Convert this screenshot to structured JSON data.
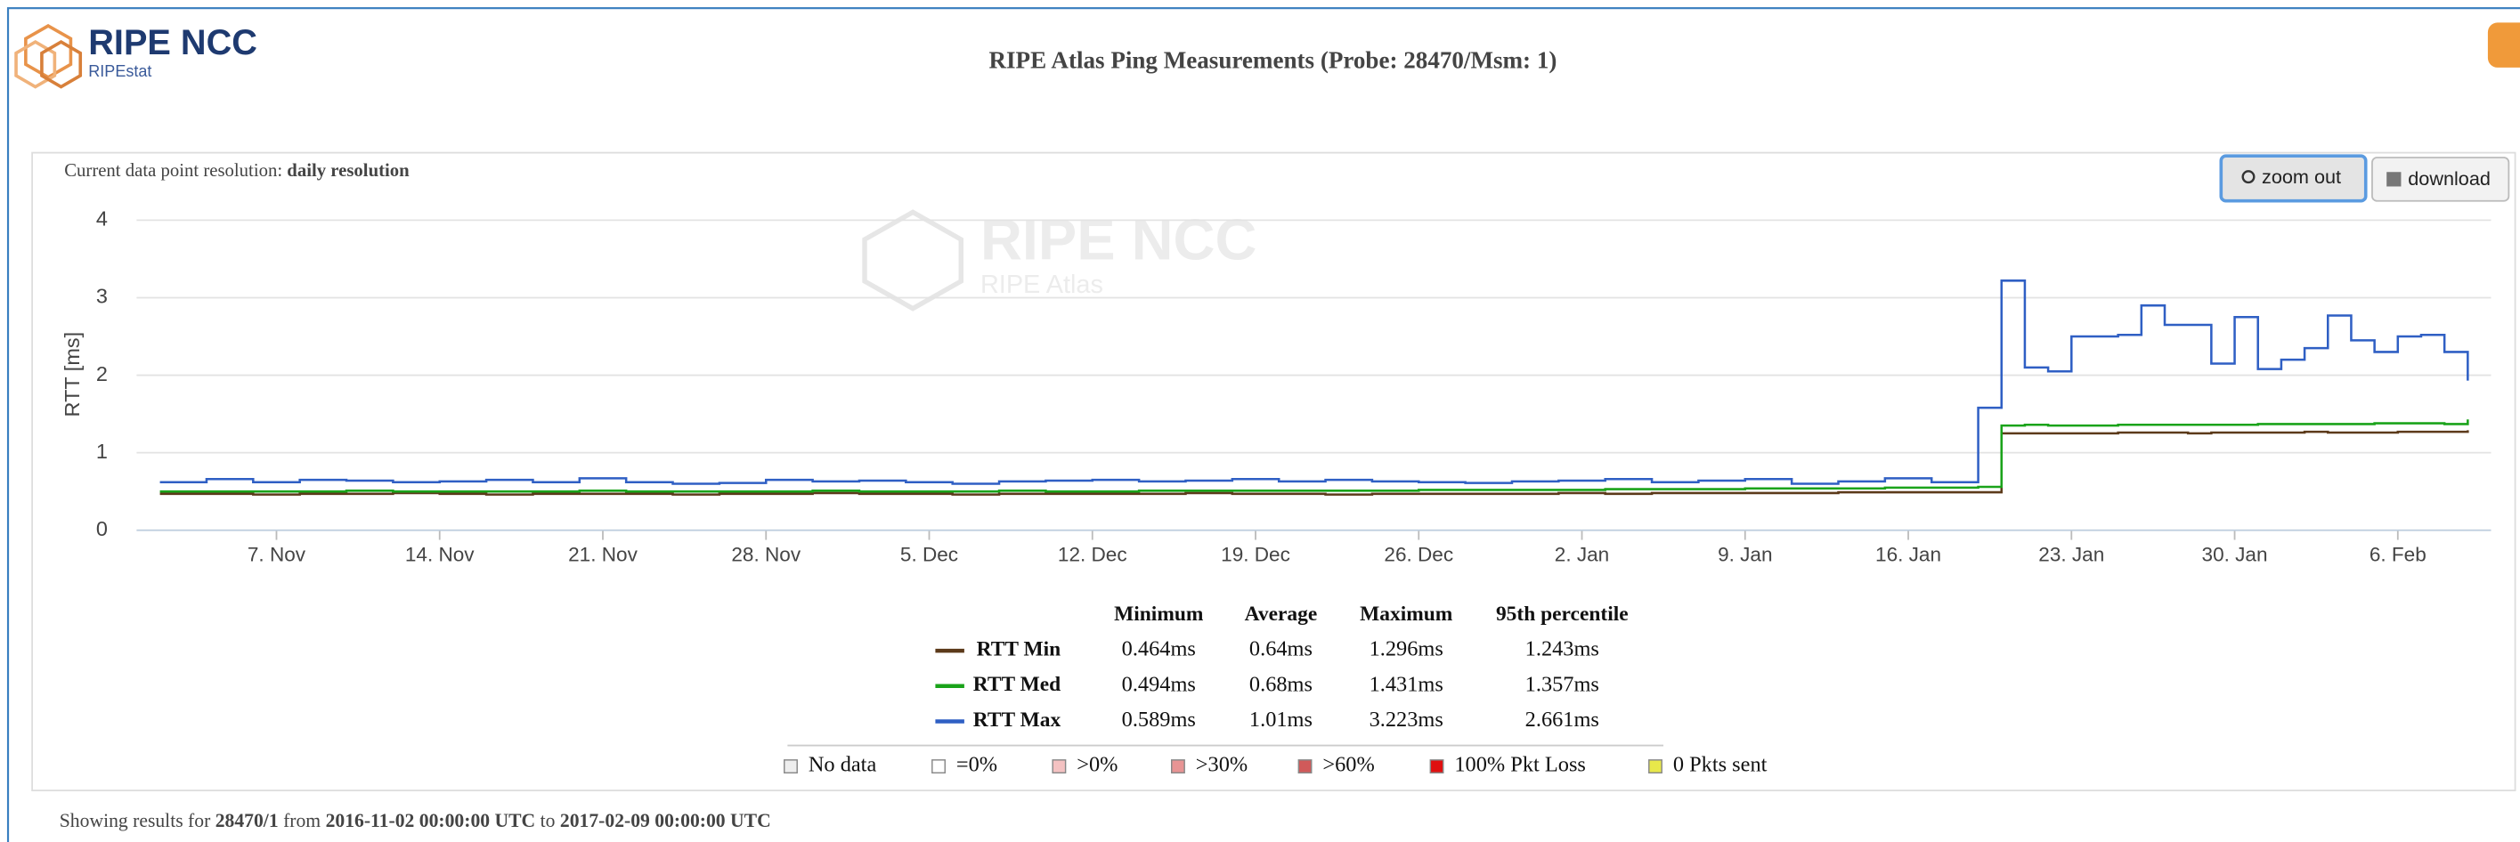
{
  "chart_data": {
    "type": "step-line",
    "title": "RIPE Atlas Ping Measurements (Probe: 28470/Msm: 1)",
    "ylabel": "RTT [ms]",
    "x": [
      "2016-11-02",
      "2016-11-04",
      "2016-11-06",
      "2016-11-08",
      "2016-11-10",
      "2016-11-12",
      "2016-11-14",
      "2016-11-16",
      "2016-11-18",
      "2016-11-20",
      "2016-11-22",
      "2016-11-24",
      "2016-11-26",
      "2016-11-28",
      "2016-11-30",
      "2016-12-02",
      "2016-12-04",
      "2016-12-06",
      "2016-12-08",
      "2016-12-10",
      "2016-12-12",
      "2016-12-14",
      "2016-12-16",
      "2016-12-18",
      "2016-12-20",
      "2016-12-22",
      "2016-12-24",
      "2016-12-26",
      "2016-12-28",
      "2016-12-30",
      "2017-01-01",
      "2017-01-03",
      "2017-01-05",
      "2017-01-07",
      "2017-01-09",
      "2017-01-11",
      "2017-01-13",
      "2017-01-15",
      "2017-01-17",
      "2017-01-19",
      "2017-01-20",
      "2017-01-21",
      "2017-01-22",
      "2017-01-23",
      "2017-01-24",
      "2017-01-25",
      "2017-01-26",
      "2017-01-27",
      "2017-01-28",
      "2017-01-29",
      "2017-01-30",
      "2017-01-31",
      "2017-02-01",
      "2017-02-02",
      "2017-02-03",
      "2017-02-04",
      "2017-02-05",
      "2017-02-06",
      "2017-02-07",
      "2017-02-08",
      "2017-02-09"
    ],
    "series": [
      {
        "name": "RTT Min",
        "color": "#5c3a1a",
        "values": [
          0.47,
          0.47,
          0.46,
          0.47,
          0.47,
          0.48,
          0.47,
          0.46,
          0.47,
          0.47,
          0.47,
          0.46,
          0.47,
          0.47,
          0.48,
          0.47,
          0.47,
          0.46,
          0.47,
          0.47,
          0.47,
          0.47,
          0.48,
          0.47,
          0.47,
          0.46,
          0.47,
          0.47,
          0.47,
          0.47,
          0.48,
          0.47,
          0.48,
          0.48,
          0.48,
          0.48,
          0.49,
          0.49,
          0.49,
          0.49,
          1.25,
          1.25,
          1.25,
          1.25,
          1.25,
          1.26,
          1.26,
          1.26,
          1.25,
          1.26,
          1.26,
          1.26,
          1.26,
          1.27,
          1.26,
          1.26,
          1.26,
          1.27,
          1.27,
          1.27,
          1.29
        ],
        "stats": [
          "0.464ms",
          "0.64ms",
          "1.296ms",
          "1.243ms"
        ]
      },
      {
        "name": "RTT Med",
        "color": "#1aa31a",
        "values": [
          0.5,
          0.5,
          0.5,
          0.5,
          0.51,
          0.5,
          0.5,
          0.5,
          0.5,
          0.51,
          0.5,
          0.5,
          0.5,
          0.5,
          0.51,
          0.5,
          0.5,
          0.5,
          0.51,
          0.5,
          0.5,
          0.51,
          0.51,
          0.51,
          0.51,
          0.51,
          0.51,
          0.52,
          0.52,
          0.52,
          0.52,
          0.53,
          0.53,
          0.53,
          0.54,
          0.54,
          0.54,
          0.55,
          0.55,
          0.56,
          1.35,
          1.36,
          1.35,
          1.35,
          1.35,
          1.36,
          1.36,
          1.36,
          1.36,
          1.36,
          1.36,
          1.37,
          1.37,
          1.37,
          1.37,
          1.37,
          1.38,
          1.38,
          1.38,
          1.37,
          1.43
        ],
        "stats": [
          "0.494ms",
          "0.68ms",
          "1.431ms",
          "1.357ms"
        ]
      },
      {
        "name": "RTT Max",
        "color": "#2f5fc4",
        "values": [
          0.62,
          0.66,
          0.62,
          0.65,
          0.64,
          0.62,
          0.63,
          0.65,
          0.62,
          0.67,
          0.62,
          0.6,
          0.61,
          0.65,
          0.63,
          0.64,
          0.62,
          0.6,
          0.63,
          0.64,
          0.65,
          0.63,
          0.64,
          0.66,
          0.63,
          0.65,
          0.63,
          0.62,
          0.61,
          0.63,
          0.64,
          0.66,
          0.62,
          0.64,
          0.66,
          0.6,
          0.63,
          0.67,
          0.62,
          1.58,
          3.22,
          2.1,
          2.05,
          2.5,
          2.5,
          2.52,
          2.9,
          2.65,
          2.65,
          2.15,
          2.75,
          2.08,
          2.2,
          2.35,
          2.77,
          2.45,
          2.3,
          2.5,
          2.52,
          2.3,
          1.93
        ],
        "stats": [
          "0.589ms",
          "1.01ms",
          "3.223ms",
          "2.661ms"
        ]
      }
    ],
    "stat_headers": [
      "Minimum",
      "Average",
      "Maximum",
      "95th percentile"
    ],
    "xlim": [
      "2016-11-01",
      "2017-02-10"
    ],
    "xticks": [
      {
        "value": "2016-11-07",
        "label": "7. Nov"
      },
      {
        "value": "2016-11-14",
        "label": "14. Nov"
      },
      {
        "value": "2016-11-21",
        "label": "21. Nov"
      },
      {
        "value": "2016-11-28",
        "label": "28. Nov"
      },
      {
        "value": "2016-12-05",
        "label": "5. Dec"
      },
      {
        "value": "2016-12-12",
        "label": "12. Dec"
      },
      {
        "value": "2016-12-19",
        "label": "19. Dec"
      },
      {
        "value": "2016-12-26",
        "label": "26. Dec"
      },
      {
        "value": "2017-01-02",
        "label": "2. Jan"
      },
      {
        "value": "2017-01-09",
        "label": "9. Jan"
      },
      {
        "value": "2017-01-16",
        "label": "16. Jan"
      },
      {
        "value": "2017-01-23",
        "label": "23. Jan"
      },
      {
        "value": "2017-01-30",
        "label": "30. Jan"
      },
      {
        "value": "2017-02-06",
        "label": "6. Feb"
      }
    ],
    "ylim": [
      0,
      4
    ],
    "yticks": [
      0,
      1,
      2,
      3,
      4
    ],
    "grid": true
  },
  "header": {
    "logo": "RIPE NCC",
    "logo_sub": "RIPEstat"
  },
  "watermark": {
    "title": "RIPE NCC",
    "subtitle": "RIPE Atlas"
  },
  "resolution": {
    "label": "Current data point resolution:",
    "value": "daily resolution"
  },
  "buttons": [
    "zoom out",
    "download"
  ],
  "loss_legend": [
    {
      "label": "No data",
      "color": "#eeeeee"
    },
    {
      "label": "=0%",
      "color": "#ffffff"
    },
    {
      "label": ">0%",
      "color": "#f4c2c2"
    },
    {
      "label": ">30%",
      "color": "#e89494"
    },
    {
      "label": ">60%",
      "color": "#d05a5a"
    },
    {
      "label": "100% Pkt Loss",
      "color": "#e01010"
    },
    {
      "label": "0 Pkts sent",
      "color": "#e8e84a"
    }
  ],
  "footer": [
    {
      "text": "Showing results for",
      "bold": false
    },
    {
      "text": "28470/1",
      "bold": true
    },
    {
      "text": "from",
      "bold": false
    },
    {
      "text": "2016-11-02 00:00:00 UTC",
      "bold": true
    },
    {
      "text": "to",
      "bold": false
    },
    {
      "text": "2017-02-09 00:00:00 UTC",
      "bold": true
    }
  ]
}
